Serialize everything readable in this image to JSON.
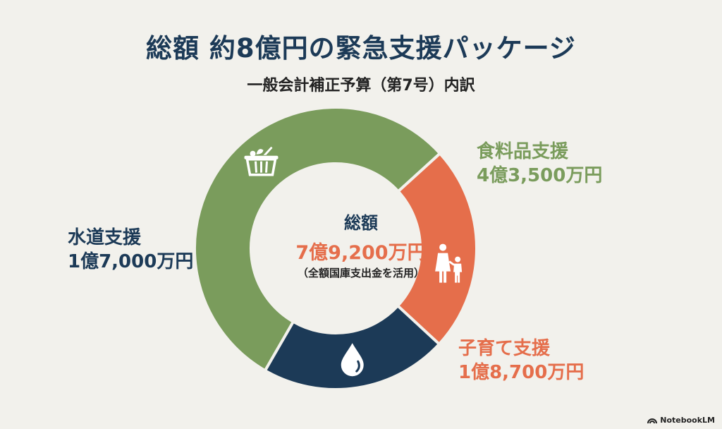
{
  "header": {
    "title": "総額 約8億円の緊急支援パッケージ",
    "subtitle": "一般会計補正予算（第7号）内訳"
  },
  "center": {
    "title": "総額",
    "value": "7億9,200万円",
    "note": "（全額国庫支出金を活用）"
  },
  "colors": {
    "food": "#7a9c5c",
    "water": "#1c3a57",
    "child": "#e56e4b",
    "background": "#f2f1ec"
  },
  "chart_data": {
    "type": "pie",
    "categories": [
      "食料品支援",
      "子育て支援",
      "水道支援"
    ],
    "values": [
      43500,
      18700,
      17000
    ],
    "value_labels": [
      "4億3,500万円",
      "1億8,700万円",
      "1億7,000万円"
    ],
    "icons": [
      "basket-icon",
      "parent-child-icon",
      "water-drop-icon"
    ],
    "total": 79200
  },
  "branding": {
    "text": "NotebookLM"
  }
}
